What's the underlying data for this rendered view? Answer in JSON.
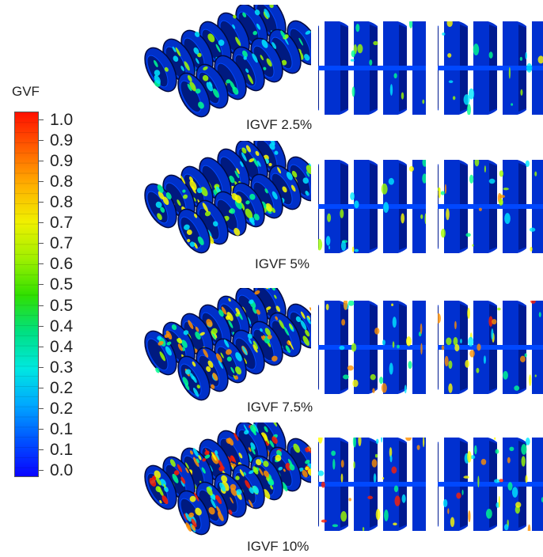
{
  "legend": {
    "title": "GVF",
    "ticks": [
      "1.0",
      "0.9",
      "0.9",
      "0.8",
      "0.8",
      "0.7",
      "0.7",
      "0.6",
      "0.5",
      "0.5",
      "0.4",
      "0.4",
      "0.3",
      "0.2",
      "0.2",
      "0.1",
      "0.1",
      "0.0"
    ],
    "colors": [
      "#0a00ff",
      "#0050ff",
      "#00a8ff",
      "#00e8e0",
      "#00e080",
      "#30e000",
      "#a0f000",
      "#f0f000",
      "#ffb000",
      "#ff6000",
      "#ff1000"
    ]
  },
  "cases": [
    {
      "label": "IGVF 2.5%",
      "intensity": 0.25
    },
    {
      "label": "IGVF 5%",
      "intensity": 0.5
    },
    {
      "label": "IGVF 7.5%",
      "intensity": 0.75
    },
    {
      "label": "IGVF 10%",
      "intensity": 1.0
    }
  ]
}
